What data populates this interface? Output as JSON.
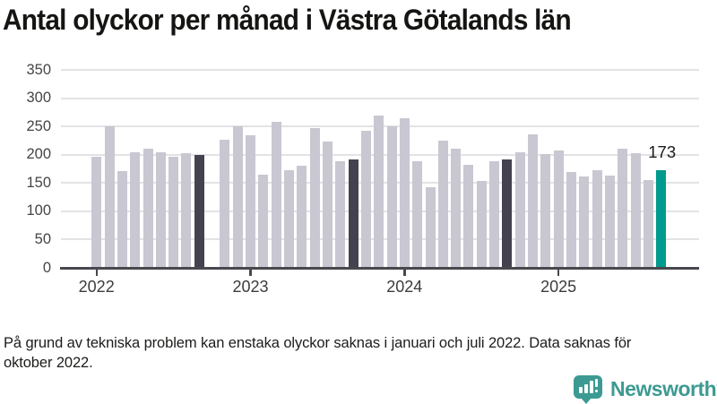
{
  "title": "Antal olyckor per månad i Västra Götalands län",
  "footnote": "På grund av tekniska problem kan enstaka olyckor saknas i januari och juli 2022. Data saknas för oktober 2022.",
  "annotation": {
    "text": "173"
  },
  "logo": {
    "name": "Newsworthy",
    "icon": "newsworthy-bar-chart-bubble-icon",
    "color": "#3d9a92"
  },
  "colors": {
    "bar_default": "#c9c7d1",
    "bar_reference": "#454250",
    "bar_current": "#009a8e",
    "grid": "#e3e3e5",
    "axis": "#48484e",
    "title_text": "#151513",
    "axis_text": "#454545"
  },
  "chart_data": {
    "type": "bar",
    "title": "Antal olyckor per månad i Västra Götalands län",
    "xlabel": "",
    "ylabel": "",
    "ylim": [
      0,
      350
    ],
    "y_ticks": [
      0,
      50,
      100,
      150,
      200,
      250,
      300,
      350
    ],
    "grid": true,
    "legend": "none",
    "x_ticks": [
      {
        "label": "2022",
        "month_index": 0
      },
      {
        "label": "2023",
        "month_index": 12
      },
      {
        "label": "2024",
        "month_index": 24
      },
      {
        "label": "2025",
        "month_index": 36
      }
    ],
    "bars": [
      {
        "month": "2022-01",
        "value": 196,
        "type": "normal"
      },
      {
        "month": "2022-02",
        "value": 251,
        "type": "normal"
      },
      {
        "month": "2022-03",
        "value": 171,
        "type": "normal"
      },
      {
        "month": "2022-04",
        "value": 205,
        "type": "normal"
      },
      {
        "month": "2022-05",
        "value": 210,
        "type": "normal"
      },
      {
        "month": "2022-06",
        "value": 205,
        "type": "normal"
      },
      {
        "month": "2022-07",
        "value": 196,
        "type": "normal"
      },
      {
        "month": "2022-08",
        "value": 203,
        "type": "normal"
      },
      {
        "month": "2022-09",
        "value": 199,
        "type": "reference"
      },
      {
        "month": "2022-10",
        "value": null,
        "type": "missing"
      },
      {
        "month": "2022-11",
        "value": 226,
        "type": "normal"
      },
      {
        "month": "2022-12",
        "value": 251,
        "type": "normal"
      },
      {
        "month": "2023-01",
        "value": 235,
        "type": "normal"
      },
      {
        "month": "2023-02",
        "value": 165,
        "type": "normal"
      },
      {
        "month": "2023-03",
        "value": 259,
        "type": "normal"
      },
      {
        "month": "2023-04",
        "value": 173,
        "type": "normal"
      },
      {
        "month": "2023-05",
        "value": 180,
        "type": "normal"
      },
      {
        "month": "2023-06",
        "value": 247,
        "type": "normal"
      },
      {
        "month": "2023-07",
        "value": 223,
        "type": "normal"
      },
      {
        "month": "2023-08",
        "value": 188,
        "type": "normal"
      },
      {
        "month": "2023-09",
        "value": 191,
        "type": "reference"
      },
      {
        "month": "2023-10",
        "value": 243,
        "type": "normal"
      },
      {
        "month": "2023-11",
        "value": 270,
        "type": "normal"
      },
      {
        "month": "2023-12",
        "value": 251,
        "type": "normal"
      },
      {
        "month": "2024-01",
        "value": 264,
        "type": "normal"
      },
      {
        "month": "2024-02",
        "value": 188,
        "type": "normal"
      },
      {
        "month": "2024-03",
        "value": 143,
        "type": "normal"
      },
      {
        "month": "2024-04",
        "value": 225,
        "type": "normal"
      },
      {
        "month": "2024-05",
        "value": 210,
        "type": "normal"
      },
      {
        "month": "2024-06",
        "value": 183,
        "type": "normal"
      },
      {
        "month": "2024-07",
        "value": 153,
        "type": "normal"
      },
      {
        "month": "2024-08",
        "value": 188,
        "type": "normal"
      },
      {
        "month": "2024-09",
        "value": 191,
        "type": "reference"
      },
      {
        "month": "2024-10",
        "value": 205,
        "type": "normal"
      },
      {
        "month": "2024-11",
        "value": 236,
        "type": "normal"
      },
      {
        "month": "2024-12",
        "value": 202,
        "type": "normal"
      },
      {
        "month": "2025-01",
        "value": 207,
        "type": "normal"
      },
      {
        "month": "2025-02",
        "value": 169,
        "type": "normal"
      },
      {
        "month": "2025-03",
        "value": 161,
        "type": "normal"
      },
      {
        "month": "2025-04",
        "value": 172,
        "type": "normal"
      },
      {
        "month": "2025-05",
        "value": 164,
        "type": "normal"
      },
      {
        "month": "2025-06",
        "value": 211,
        "type": "normal"
      },
      {
        "month": "2025-07",
        "value": 203,
        "type": "normal"
      },
      {
        "month": "2025-08",
        "value": 155,
        "type": "normal"
      },
      {
        "month": "2025-09",
        "value": 173,
        "type": "current"
      }
    ]
  }
}
